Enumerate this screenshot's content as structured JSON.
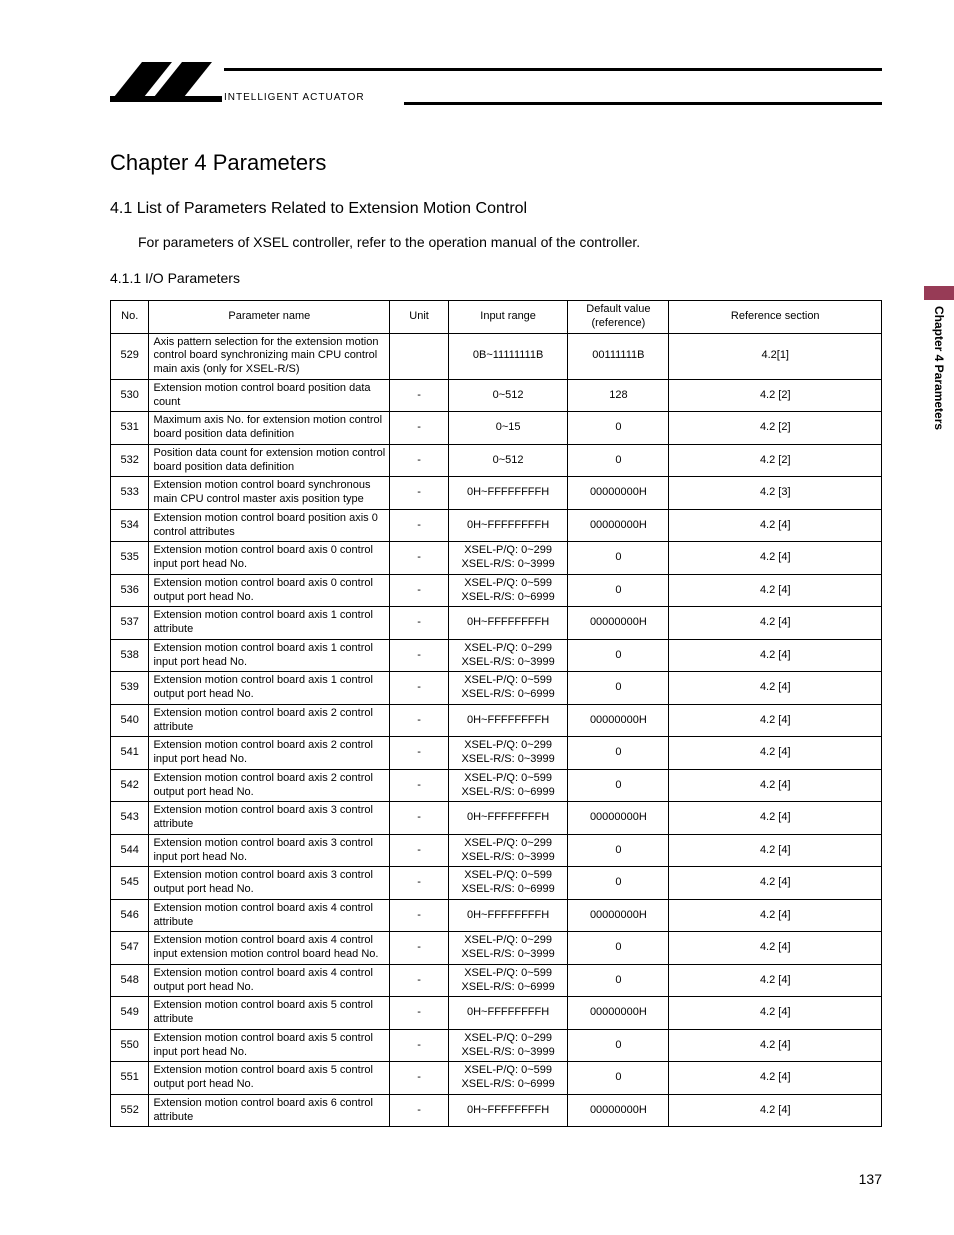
{
  "header": {
    "brand_text": "INTELLIGENT ACTUATOR"
  },
  "sideTab": {
    "label": "Chapter 4 Parameters"
  },
  "chapter": {
    "title": "Chapter 4  Parameters"
  },
  "section": {
    "title": "4.1   List of Parameters Related to Extension Motion Control",
    "body": "For parameters of XSEL controller, refer to the operation manual of the controller."
  },
  "subsection": {
    "title": "4.1.1   I/O Parameters"
  },
  "table": {
    "columns": [
      "No.",
      "Parameter name",
      "Unit",
      "Input range",
      "Default value (reference)",
      "Reference section"
    ],
    "rows": [
      {
        "no": "529",
        "name": "Axis pattern selection for the extension motion control board synchronizing main CPU control main axis (only for XSEL-R/S)",
        "unit": "",
        "range": "0B~11111111B",
        "def": "00111111B",
        "ref": "4.2[1]"
      },
      {
        "no": "530",
        "name": "Extension motion control board position data count",
        "unit": "-",
        "range": "0~512",
        "def": "128",
        "ref": "4.2 [2]"
      },
      {
        "no": "531",
        "name": "Maximum axis No. for extension motion control board position data definition",
        "unit": "-",
        "range": "0~15",
        "def": "0",
        "ref": "4.2 [2]"
      },
      {
        "no": "532",
        "name": "Position data count for extension motion control board position data definition",
        "unit": "-",
        "range": "0~512",
        "def": "0",
        "ref": "4.2 [2]"
      },
      {
        "no": "533",
        "name": "Extension motion control board synchronous main CPU control master axis position type",
        "unit": "-",
        "range": "0H~FFFFFFFFH",
        "def": "00000000H",
        "ref": "4.2 [3]"
      },
      {
        "no": "534",
        "name": "Extension motion control board position axis 0 control attributes",
        "unit": "-",
        "range": "0H~FFFFFFFFH",
        "def": "00000000H",
        "ref": "4.2 [4]"
      },
      {
        "no": "535",
        "name": "Extension motion control board axis 0 control input port head No.",
        "unit": "-",
        "range": "XSEL-P/Q: 0~299\nXSEL-R/S: 0~3999",
        "def": "0",
        "ref": "4.2 [4]"
      },
      {
        "no": "536",
        "name": "Extension motion control board axis 0 control output port head No.",
        "unit": "-",
        "range": "XSEL-P/Q: 0~599\nXSEL-R/S: 0~6999",
        "def": "0",
        "ref": "4.2 [4]"
      },
      {
        "no": "537",
        "name": "Extension motion control board axis 1 control attribute",
        "unit": "-",
        "range": "0H~FFFFFFFFH",
        "def": "00000000H",
        "ref": "4.2 [4]"
      },
      {
        "no": "538",
        "name": "Extension motion control board axis 1 control input port head No.",
        "unit": "-",
        "range": "XSEL-P/Q: 0~299\nXSEL-R/S: 0~3999",
        "def": "0",
        "ref": "4.2 [4]"
      },
      {
        "no": "539",
        "name": "Extension motion control board axis 1 control output port head No.",
        "unit": "-",
        "range": "XSEL-P/Q: 0~599\nXSEL-R/S: 0~6999",
        "def": "0",
        "ref": "4.2 [4]"
      },
      {
        "no": "540",
        "name": "Extension motion control board axis 2 control attribute",
        "unit": "-",
        "range": "0H~FFFFFFFFH",
        "def": "00000000H",
        "ref": "4.2 [4]"
      },
      {
        "no": "541",
        "name": "Extension motion control board axis 2 control input port head No.",
        "unit": "-",
        "range": "XSEL-P/Q: 0~299\nXSEL-R/S: 0~3999",
        "def": "0",
        "ref": "4.2 [4]"
      },
      {
        "no": "542",
        "name": "Extension motion control board axis 2 control output port head No.",
        "unit": "-",
        "range": "XSEL-P/Q: 0~599\nXSEL-R/S: 0~6999",
        "def": "0",
        "ref": "4.2 [4]"
      },
      {
        "no": "543",
        "name": "Extension motion control board axis 3 control attribute",
        "unit": "-",
        "range": "0H~FFFFFFFFH",
        "def": "00000000H",
        "ref": "4.2 [4]"
      },
      {
        "no": "544",
        "name": "Extension motion control board axis 3 control input port head No.",
        "unit": "-",
        "range": "XSEL-P/Q: 0~299\nXSEL-R/S: 0~3999",
        "def": "0",
        "ref": "4.2 [4]"
      },
      {
        "no": "545",
        "name": "Extension motion control board axis 3 control output port head No.",
        "unit": "-",
        "range": "XSEL-P/Q: 0~599\nXSEL-R/S: 0~6999",
        "def": "0",
        "ref": "4.2 [4]"
      },
      {
        "no": "546",
        "name": "Extension motion control board axis 4 control attribute",
        "unit": "-",
        "range": "0H~FFFFFFFFH",
        "def": "00000000H",
        "ref": "4.2 [4]"
      },
      {
        "no": "547",
        "name": "Extension motion control board axis 4 control input extension motion control board head No.",
        "unit": "-",
        "range": "XSEL-P/Q: 0~299\nXSEL-R/S: 0~3999",
        "def": "0",
        "ref": "4.2 [4]"
      },
      {
        "no": "548",
        "name": "Extension motion control board axis 4 control output port head No.",
        "unit": "-",
        "range": "XSEL-P/Q: 0~599\nXSEL-R/S: 0~6999",
        "def": "0",
        "ref": "4.2 [4]"
      },
      {
        "no": "549",
        "name": "Extension motion control board axis 5 control attribute",
        "unit": "-",
        "range": "0H~FFFFFFFFH",
        "def": "00000000H",
        "ref": "4.2 [4]"
      },
      {
        "no": "550",
        "name": "Extension motion control board axis 5 control input port head No.",
        "unit": "-",
        "range": "XSEL-P/Q: 0~299\nXSEL-R/S: 0~3999",
        "def": "0",
        "ref": "4.2 [4]"
      },
      {
        "no": "551",
        "name": "Extension motion control board axis 5 control output port head No.",
        "unit": "-",
        "range": "XSEL-P/Q: 0~599\nXSEL-R/S: 0~6999",
        "def": "0",
        "ref": "4.2 [4]"
      },
      {
        "no": "552",
        "name": "Extension motion control board axis 6 control attribute",
        "unit": "-",
        "range": "0H~FFFFFFFFH",
        "def": "00000000H",
        "ref": "4.2 [4]"
      }
    ]
  },
  "pageNumber": "137"
}
